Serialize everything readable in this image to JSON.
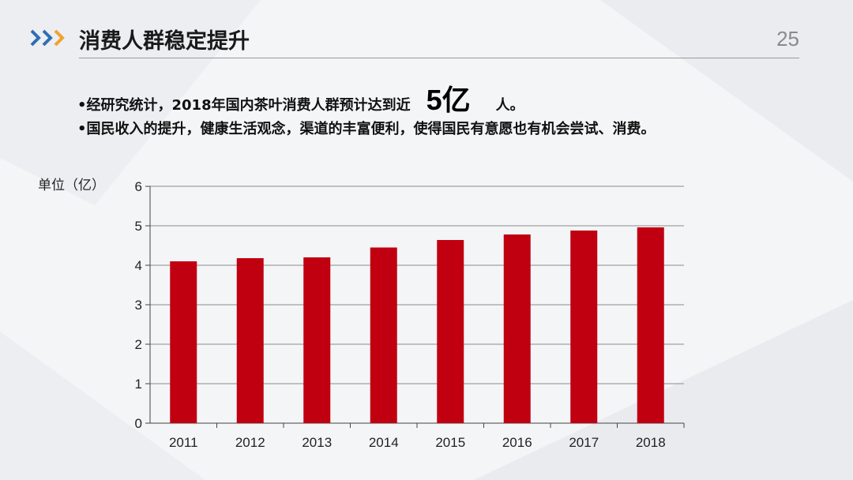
{
  "page": {
    "title": "消费人群稳定提升",
    "page_number": "25",
    "bullets": {
      "b1_text": "•经研究统计，2018年国内茶叶消费人群预计达到近",
      "b1_highlight": "5亿",
      "b1_suffix": "人。",
      "b2_text": "•国民收入的提升，健康生活观念，渠道的丰富便利，使得国民有意愿也有机会尝试、消费。"
    },
    "colors": {
      "bar": "#c00010",
      "accent_blue": "#2f6db5",
      "accent_orange": "#f2a22c"
    },
    "icons": {
      "title_marker": "triple-chevron-icon"
    }
  },
  "chart_data": {
    "type": "bar",
    "ylabel": "单位（亿）",
    "categories": [
      "2011",
      "2012",
      "2013",
      "2014",
      "2015",
      "2016",
      "2017",
      "2018"
    ],
    "values": [
      4.1,
      4.18,
      4.2,
      4.45,
      4.64,
      4.78,
      4.88,
      4.96
    ],
    "ylim": [
      0,
      6
    ],
    "yticks": [
      0,
      1,
      2,
      3,
      4,
      5,
      6
    ],
    "grid": true
  }
}
